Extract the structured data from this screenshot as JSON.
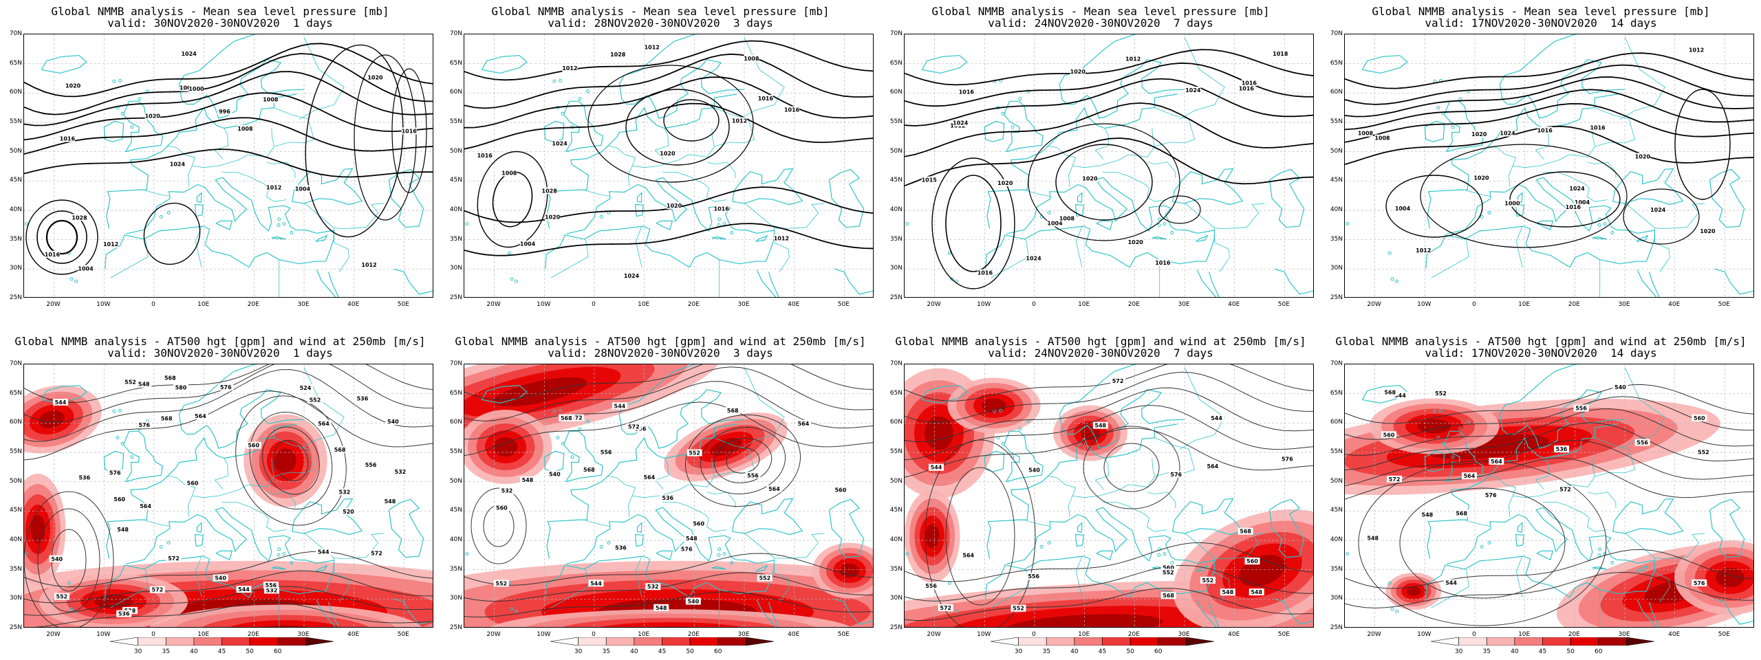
{
  "colors": {
    "coastline": "#2ec4c8",
    "contour": "#000000",
    "grid": "#b8b8b8",
    "wind_scale": [
      "#ffffff",
      "#fde0e0",
      "#f9b3b3",
      "#f47d7d",
      "#ee3a3a",
      "#e60000",
      "#a80000",
      "#5c0000"
    ]
  },
  "lat_labels": [
    "70N",
    "65N",
    "60N",
    "55N",
    "50N",
    "45N",
    "40N",
    "35N",
    "30N",
    "25N"
  ],
  "lon_labels": [
    "20W",
    "10W",
    "0",
    "10E",
    "20E",
    "30E",
    "40E",
    "50E"
  ],
  "colorbar_labels": [
    "30",
    "35",
    "40",
    "45",
    "50",
    "60"
  ],
  "top_row": [
    {
      "title": "Global NMMB analysis - Mean sea level pressure [mb]",
      "valid": "valid: 30NOV2020-30NOV2020  1 days",
      "contour_labels": [
        "1012",
        "1016",
        "1020",
        "1024",
        "1008",
        "1004",
        "1000",
        "996",
        "1028",
        "1020",
        "1016",
        "1012",
        "1000",
        "1008",
        "1004",
        "1020",
        "1024",
        "1016",
        "1012"
      ]
    },
    {
      "title": "Global NMMB analysis - Mean sea level pressure [mb]",
      "valid": "valid: 28NOV2020-30NOV2020  3 days",
      "contour_labels": [
        "1004",
        "1008",
        "1012",
        "1016",
        "1020",
        "1024",
        "1028",
        "1020",
        "1016",
        "1012",
        "1008",
        "1012",
        "1016",
        "1020",
        "1024",
        "1028",
        "1012",
        "1016"
      ]
    },
    {
      "title": "Global NMMB analysis - Mean sea level pressure [mb]",
      "valid": "valid: 24NOV2020-30NOV2020  7 days",
      "contour_labels": [
        "1004",
        "1008",
        "1012",
        "1016",
        "1020",
        "1024",
        "1018",
        "1016",
        "1020",
        "1012",
        "1016",
        "1024",
        "1016",
        "1020",
        "1024",
        "1016",
        "1020",
        "1015"
      ]
    },
    {
      "title": "Global NMMB analysis - Mean sea level pressure [mb]",
      "valid": "valid: 17NOV2020-30NOV2020  14 days",
      "contour_labels": [
        "1004",
        "1008",
        "1012",
        "1016",
        "1020",
        "1024",
        "1020",
        "1024",
        "1020",
        "1016",
        "1012",
        "1008",
        "1004",
        "1000",
        "1024",
        "1020",
        "1016"
      ]
    }
  ],
  "bottom_row": [
    {
      "title": "Global NMMB analysis - AT500 hgt [gpm] and wind at 250mb [m/s]",
      "valid": "valid: 30NOV2020-30NOV2020  1 days",
      "contour_labels": [
        "520",
        "524",
        "528",
        "532",
        "536",
        "540",
        "544",
        "548",
        "552",
        "556",
        "560",
        "564",
        "568",
        "572",
        "576",
        "548",
        "544",
        "540",
        "536",
        "532",
        "552",
        "556",
        "560",
        "564",
        "568",
        "552",
        "548",
        "544",
        "540",
        "536",
        "532",
        "580",
        "576",
        "572",
        "568",
        "564",
        "560",
        "576",
        "572"
      ]
    },
    {
      "title": "Global NMMB analysis - AT500 hgt [gpm] and wind at 250mb [m/s]",
      "valid": "valid: 28NOV2020-30NOV2020  3 days",
      "contour_labels": [
        "532",
        "536",
        "540",
        "544",
        "548",
        "552",
        "556",
        "560",
        "564",
        "568",
        "572",
        "576",
        "548",
        "544",
        "540",
        "536",
        "532",
        "552",
        "556",
        "560",
        "564",
        "568",
        "572",
        "556",
        "560",
        "564",
        "568",
        "548",
        "552"
      ]
    },
    {
      "title": "Global NMMB analysis - AT500 hgt [gpm] and wind at 250mb [m/s]",
      "valid": "valid: 24NOV2020-30NOV2020  7 days",
      "contour_labels": [
        "540",
        "544",
        "548",
        "552",
        "556",
        "560",
        "564",
        "568",
        "572",
        "576",
        "556",
        "548",
        "544",
        "552",
        "560",
        "564",
        "568",
        "572",
        "576",
        "548",
        "552"
      ]
    },
    {
      "title": "Global NMMB analysis - AT500 hgt [gpm] and wind at 250mb [m/s]",
      "valid": "valid: 17NOV2020-30NOV2020  14 days",
      "contour_labels": [
        "536",
        "540",
        "544",
        "548",
        "552",
        "556",
        "560",
        "564",
        "568",
        "572",
        "576",
        "544",
        "548",
        "552",
        "556",
        "560",
        "564",
        "568",
        "572",
        "576"
      ]
    }
  ]
}
